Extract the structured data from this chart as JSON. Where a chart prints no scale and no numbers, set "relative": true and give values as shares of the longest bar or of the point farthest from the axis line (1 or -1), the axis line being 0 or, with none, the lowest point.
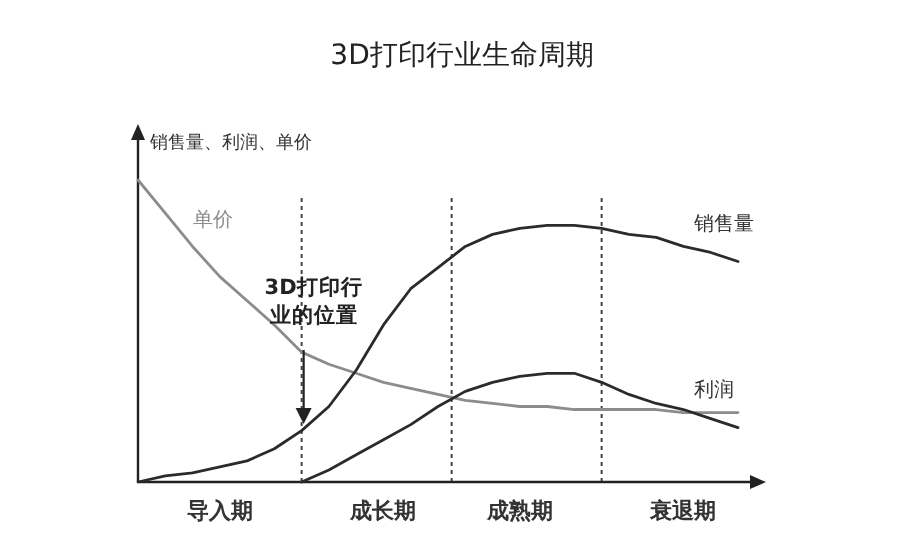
{
  "chart_data": {
    "type": "line",
    "title": "3D打印行业生命周期",
    "ylabel": "销售量、利润、单价",
    "relative": true,
    "line_style": "solid",
    "categories": [
      null,
      null,
      null,
      "导入期",
      null,
      null,
      null,
      null,
      null,
      "成长期",
      null,
      null,
      null,
      null,
      "成熟期",
      null,
      null,
      null,
      null,
      null,
      "衰退期",
      null,
      null
    ],
    "series": [
      {
        "name": "单价",
        "color": "#8c8c8c",
        "values": [
          1,
          0.89,
          0.78,
          0.68,
          0.6,
          0.52,
          0.43,
          0.39,
          0.36,
          0.33,
          0.31,
          0.29,
          0.27,
          0.26,
          0.25,
          0.25,
          0.24,
          0.24,
          0.24,
          0.24,
          0.23,
          0.23,
          0.23
        ]
      },
      {
        "name": "销售量",
        "color": "#2b2b2b",
        "values": [
          0,
          0.02,
          0.03,
          0.05,
          0.07,
          0.11,
          0.17,
          0.25,
          0.37,
          0.52,
          0.64,
          0.71,
          0.78,
          0.82,
          0.84,
          0.85,
          0.85,
          0.84,
          0.82,
          0.81,
          0.78,
          0.76,
          0.73
        ]
      },
      {
        "name": "利润",
        "color": "#2b2b2b",
        "values": [
          null,
          null,
          null,
          null,
          null,
          null,
          0,
          0.04,
          0.09,
          0.14,
          0.19,
          0.25,
          0.3,
          0.33,
          0.35,
          0.36,
          0.36,
          0.33,
          0.29,
          0.26,
          0.24,
          0.21,
          0.18
        ]
      }
    ],
    "annotations": [
      "3D打印行业的位置"
    ]
  }
}
